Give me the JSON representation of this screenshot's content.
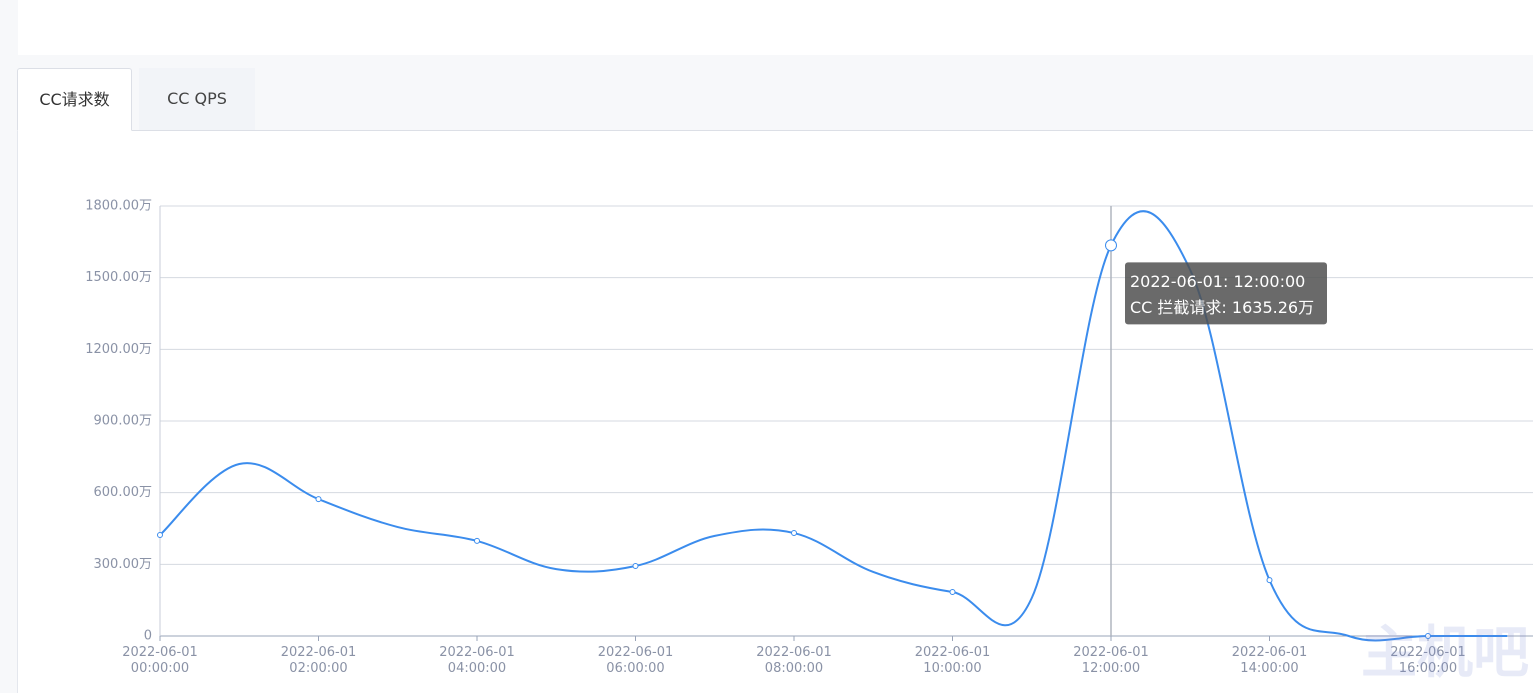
{
  "tabs": [
    "CC请求数",
    "CC QPS"
  ],
  "chart_data": {
    "type": "line",
    "color": "#3b8ced",
    "categories": [
      "2022-06-01 00:00:00",
      null,
      "2022-06-01 02:00:00",
      null,
      "2022-06-01 04:00:00",
      null,
      "2022-06-01 06:00:00",
      null,
      "2022-06-01 08:00:00",
      null,
      "2022-06-01 10:00:00",
      null,
      "2022-06-01 12:00:00",
      null,
      "2022-06-01 14:00:00",
      null,
      "2022-06-01 16:00:00",
      null
    ],
    "values": [
      423,
      720,
      573,
      456,
      398,
      280,
      293,
      419,
      431,
      268,
      184,
      159,
      1635.26,
      1532,
      234,
      0,
      0,
      0
    ],
    "ylim": [
      0,
      1800
    ],
    "yticks": [
      0,
      {
        "value": 300,
        "label": "300.00万"
      },
      {
        "value": 600,
        "label": "600.00万"
      },
      {
        "value": 900,
        "label": "900.00万"
      },
      {
        "value": 1200,
        "label": "1200.00万"
      },
      {
        "value": 1500,
        "label": "1500.00万"
      },
      {
        "value": 1800,
        "label": "1800.00万"
      }
    ],
    "grid": true,
    "tooltip": {
      "index": 12,
      "title": "2022-06-01: 12:00:00",
      "label": "CC 拦截请求: 1635.26万"
    },
    "watermark": "主机吧"
  }
}
